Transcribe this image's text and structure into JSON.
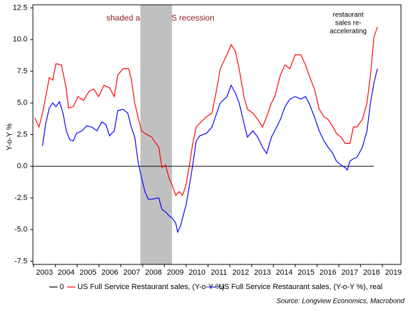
{
  "chart_data": {
    "type": "line",
    "y_label": "Y-o-Y %",
    "annotations": [
      "shaded areas = US recession"
    ],
    "annotation_callout": [
      "restaurant",
      "sales re-",
      "accelerating"
    ],
    "source": "Source: Longview Economics, Macrobond",
    "xlim": [
      2002.97,
      2019.85
    ],
    "xticks": [
      2003,
      2004,
      2005,
      2006,
      2007,
      2008,
      2009,
      2010,
      2011,
      2012,
      2013,
      2014,
      2015,
      2016,
      2017,
      2018,
      2019
    ],
    "ylim": [
      -7.75,
      12.75
    ],
    "yticks": [
      12.5,
      {
        "value": 10,
        "label": "10.0"
      },
      7.5,
      {
        "value": 5,
        "label": "5.0"
      },
      2.5,
      {
        "value": 0,
        "label": "0.0"
      },
      -2.5,
      {
        "value": -5,
        "label": "-5.0"
      },
      -7.5
    ],
    "recession": {
      "start": 2007.9,
      "end": 2009.35,
      "color": "#c0c0c0"
    },
    "reference_line": {
      "name": "0",
      "value": 0,
      "color": "#000000"
    },
    "series": [
      {
        "name": "US Full Service Restaurant sales, (Y-o-Y %)",
        "color": "#ff0000",
        "x": [
          2003.06,
          2003.25,
          2003.41,
          2003.56,
          2003.72,
          2003.88,
          2004.03,
          2004.28,
          2004.5,
          2004.6,
          2004.82,
          2005.04,
          2005.29,
          2005.54,
          2005.76,
          2005.98,
          2006.23,
          2006.48,
          2006.7,
          2006.86,
          2007.1,
          2007.36,
          2007.48,
          2007.64,
          2007.79,
          2007.95,
          2008.11,
          2008.42,
          2008.74,
          2008.89,
          2009.05,
          2009.21,
          2009.36,
          2009.52,
          2009.68,
          2009.83,
          2009.99,
          2010.15,
          2010.3,
          2010.46,
          2010.62,
          2010.93,
          2011.18,
          2011.4,
          2011.56,
          2011.87,
          2012.06,
          2012.25,
          2012.43,
          2012.65,
          2012.81,
          2013.06,
          2013.28,
          2013.5,
          2013.69,
          2013.91,
          2014.06,
          2014.32,
          2014.53,
          2014.75,
          2015.0,
          2015.26,
          2015.47,
          2015.63,
          2015.88,
          2016.1,
          2016.32,
          2016.51,
          2016.73,
          2016.89,
          2017.1,
          2017.29,
          2017.51,
          2017.67,
          2017.83,
          2018.08,
          2018.29,
          2018.45,
          2018.61,
          2018.77
        ],
        "values": [
          3.8,
          3.1,
          4.2,
          5.5,
          7.0,
          6.8,
          8.1,
          8.0,
          6.1,
          4.6,
          4.7,
          5.5,
          5.2,
          5.9,
          6.1,
          5.5,
          6.4,
          6.2,
          5.5,
          7.2,
          7.7,
          7.7,
          6.9,
          5.0,
          3.9,
          2.8,
          2.6,
          2.3,
          1.5,
          -0.1,
          0.1,
          -0.9,
          -1.5,
          -2.3,
          -2.0,
          -2.3,
          -1.5,
          0.1,
          1.8,
          3.1,
          3.4,
          3.9,
          4.2,
          6.1,
          7.7,
          8.8,
          9.6,
          9.1,
          7.7,
          5.5,
          4.5,
          4.2,
          3.7,
          3.1,
          3.9,
          5.0,
          5.5,
          7.2,
          8.0,
          7.7,
          8.8,
          8.8,
          8.0,
          7.2,
          6.1,
          4.5,
          3.9,
          3.7,
          3.1,
          2.6,
          2.3,
          1.8,
          1.8,
          3.1,
          3.1,
          3.7,
          5.0,
          7.2,
          10.2,
          11.0
        ]
      },
      {
        "name": "US Full Service Restaurant sales, (Y-o-Y %), real",
        "color": "#0000ff",
        "x": [
          2003.41,
          2003.56,
          2003.72,
          2003.88,
          2004.03,
          2004.19,
          2004.35,
          2004.5,
          2004.66,
          2004.82,
          2004.97,
          2005.22,
          2005.44,
          2005.66,
          2005.91,
          2006.13,
          2006.32,
          2006.48,
          2006.7,
          2006.86,
          2007.1,
          2007.32,
          2007.48,
          2007.64,
          2007.79,
          2007.95,
          2008.11,
          2008.26,
          2008.42,
          2008.74,
          2008.89,
          2009.05,
          2009.21,
          2009.36,
          2009.52,
          2009.61,
          2009.74,
          2009.86,
          2009.99,
          2010.15,
          2010.3,
          2010.46,
          2010.62,
          2010.93,
          2011.18,
          2011.4,
          2011.56,
          2011.87,
          2012.06,
          2012.25,
          2012.43,
          2012.65,
          2012.81,
          2013.06,
          2013.28,
          2013.5,
          2013.69,
          2013.91,
          2014.06,
          2014.32,
          2014.53,
          2014.75,
          2015.0,
          2015.26,
          2015.47,
          2015.63,
          2015.88,
          2016.1,
          2016.32,
          2016.51,
          2016.73,
          2016.89,
          2017.1,
          2017.29,
          2017.39,
          2017.51,
          2017.67,
          2017.83,
          2018.08,
          2018.29,
          2018.45,
          2018.61,
          2018.77
        ],
        "values": [
          1.6,
          3.4,
          4.6,
          5.0,
          4.7,
          5.1,
          4.2,
          2.8,
          2.1,
          2.0,
          2.6,
          2.8,
          3.2,
          3.1,
          2.8,
          3.5,
          3.3,
          2.4,
          2.8,
          4.4,
          4.5,
          4.2,
          3.1,
          2.3,
          0.4,
          -0.9,
          -2.0,
          -2.6,
          -2.6,
          -2.5,
          -3.4,
          -3.6,
          -3.9,
          -4.1,
          -4.5,
          -5.2,
          -4.7,
          -3.9,
          -3.1,
          -1.5,
          0.1,
          2.0,
          2.4,
          2.6,
          3.1,
          4.2,
          5.0,
          5.5,
          6.4,
          5.8,
          5.0,
          3.4,
          2.3,
          2.8,
          2.3,
          1.5,
          1.0,
          2.3,
          2.8,
          3.7,
          4.7,
          5.3,
          5.5,
          5.3,
          5.5,
          5.0,
          3.9,
          2.8,
          2.0,
          1.5,
          1.0,
          0.4,
          0.1,
          -0.1,
          -0.3,
          0.4,
          0.6,
          0.7,
          1.5,
          2.8,
          5.0,
          6.6,
          7.7
        ]
      }
    ]
  }
}
